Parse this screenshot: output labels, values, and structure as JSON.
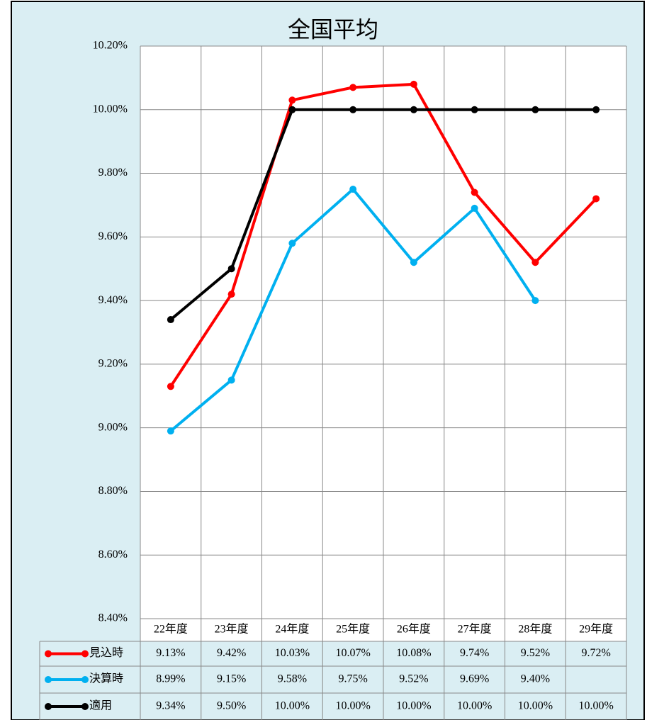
{
  "chart_data": {
    "type": "line",
    "title": "全国平均",
    "categories": [
      "22年度",
      "23年度",
      "24年度",
      "25年度",
      "26年度",
      "27年度",
      "28年度",
      "29年度"
    ],
    "series": [
      {
        "name": "見込時",
        "color": "#ff0000",
        "values": [
          9.13,
          9.42,
          10.03,
          10.07,
          10.08,
          9.74,
          9.52,
          9.72
        ],
        "value_labels": [
          "9.13%",
          "9.42%",
          "10.03%",
          "10.07%",
          "10.08%",
          "9.74%",
          "9.52%",
          "9.72%"
        ]
      },
      {
        "name": "決算時",
        "color": "#00b0f0",
        "values": [
          8.99,
          9.15,
          9.58,
          9.75,
          9.52,
          9.69,
          9.4,
          null
        ],
        "value_labels": [
          "8.99%",
          "9.15%",
          "9.58%",
          "9.75%",
          "9.52%",
          "9.69%",
          "9.40%",
          null
        ]
      },
      {
        "name": "適用",
        "color": "#000000",
        "values": [
          9.34,
          9.5,
          10.0,
          10.0,
          10.0,
          10.0,
          10.0,
          10.0
        ],
        "value_labels": [
          "9.34%",
          "9.50%",
          "10.00%",
          "10.00%",
          "10.00%",
          "10.00%",
          "10.00%",
          "10.00%"
        ]
      }
    ],
    "ylim": [
      8.4,
      10.2
    ],
    "yticks": [
      {
        "value": 8.4,
        "label": "8.40%"
      },
      {
        "value": 8.6,
        "label": "8.60%"
      },
      {
        "value": 8.8,
        "label": "8.80%"
      },
      {
        "value": 9.0,
        "label": "9.00%"
      },
      {
        "value": 9.2,
        "label": "9.20%"
      },
      {
        "value": 9.4,
        "label": "9.40%"
      },
      {
        "value": 9.6,
        "label": "9.60%"
      },
      {
        "value": 9.8,
        "label": "9.80%"
      },
      {
        "value": 10.0,
        "label": "10.00%"
      },
      {
        "value": 10.2,
        "label": "10.20%"
      }
    ],
    "grid": true
  }
}
